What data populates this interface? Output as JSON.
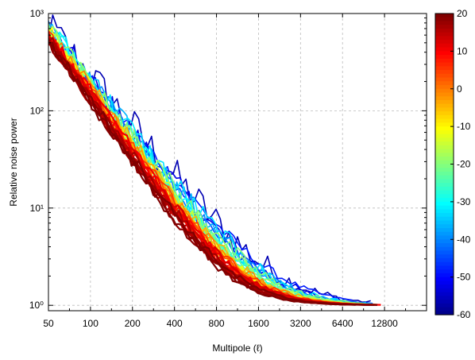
{
  "chart_data": {
    "type": "line",
    "title": "",
    "xlabel": "Multipole (ℓ)",
    "ylabel": "Relative noise power",
    "xscale": "log",
    "yscale": "log",
    "xlim": [
      50,
      25600
    ],
    "ylim": [
      0.88,
      1000
    ],
    "x_ticks": [
      50,
      100,
      200,
      400,
      800,
      1600,
      3200,
      6400,
      12800
    ],
    "x_tick_labels": [
      "50",
      "100",
      "200",
      "400",
      "800",
      "1600",
      "3200",
      "6400",
      "12800"
    ],
    "y_ticks": [
      1,
      10,
      100,
      1000
    ],
    "y_tick_labels": [
      "10⁰",
      "10¹",
      "10²",
      "10³"
    ],
    "grid": true,
    "colorbar": {
      "colormap": "jet",
      "min": -60,
      "max": 20,
      "ticks": [
        20,
        10,
        0,
        -10,
        -20,
        -30,
        -40,
        -50,
        -60
      ],
      "tick_labels": [
        "20",
        "10",
        "0",
        "-10",
        "-20",
        "-30",
        "-40",
        "-50",
        "-60"
      ]
    },
    "series_summary": {
      "count": 40,
      "color_values": [
        -56,
        -52,
        -48,
        -44,
        -40,
        -36,
        -32,
        -30,
        -28,
        -26,
        -24,
        -22,
        -20,
        -18,
        -16,
        -14,
        -12,
        -10,
        -8,
        -6,
        -4,
        -2,
        0,
        2,
        4,
        6,
        8,
        9,
        10,
        11,
        12,
        13,
        14,
        15,
        16,
        17,
        18,
        19,
        20,
        20
      ],
      "typical_shape": [
        {
          "x": 50,
          "y": 600
        },
        {
          "x": 100,
          "y": 150
        },
        {
          "x": 200,
          "y": 40
        },
        {
          "x": 400,
          "y": 9
        },
        {
          "x": 800,
          "y": 3
        },
        {
          "x": 1600,
          "y": 1.5
        },
        {
          "x": 3200,
          "y": 1.1
        },
        {
          "x": 6400,
          "y": 0.97
        },
        {
          "x": 12800,
          "y": 0.93
        }
      ]
    }
  }
}
